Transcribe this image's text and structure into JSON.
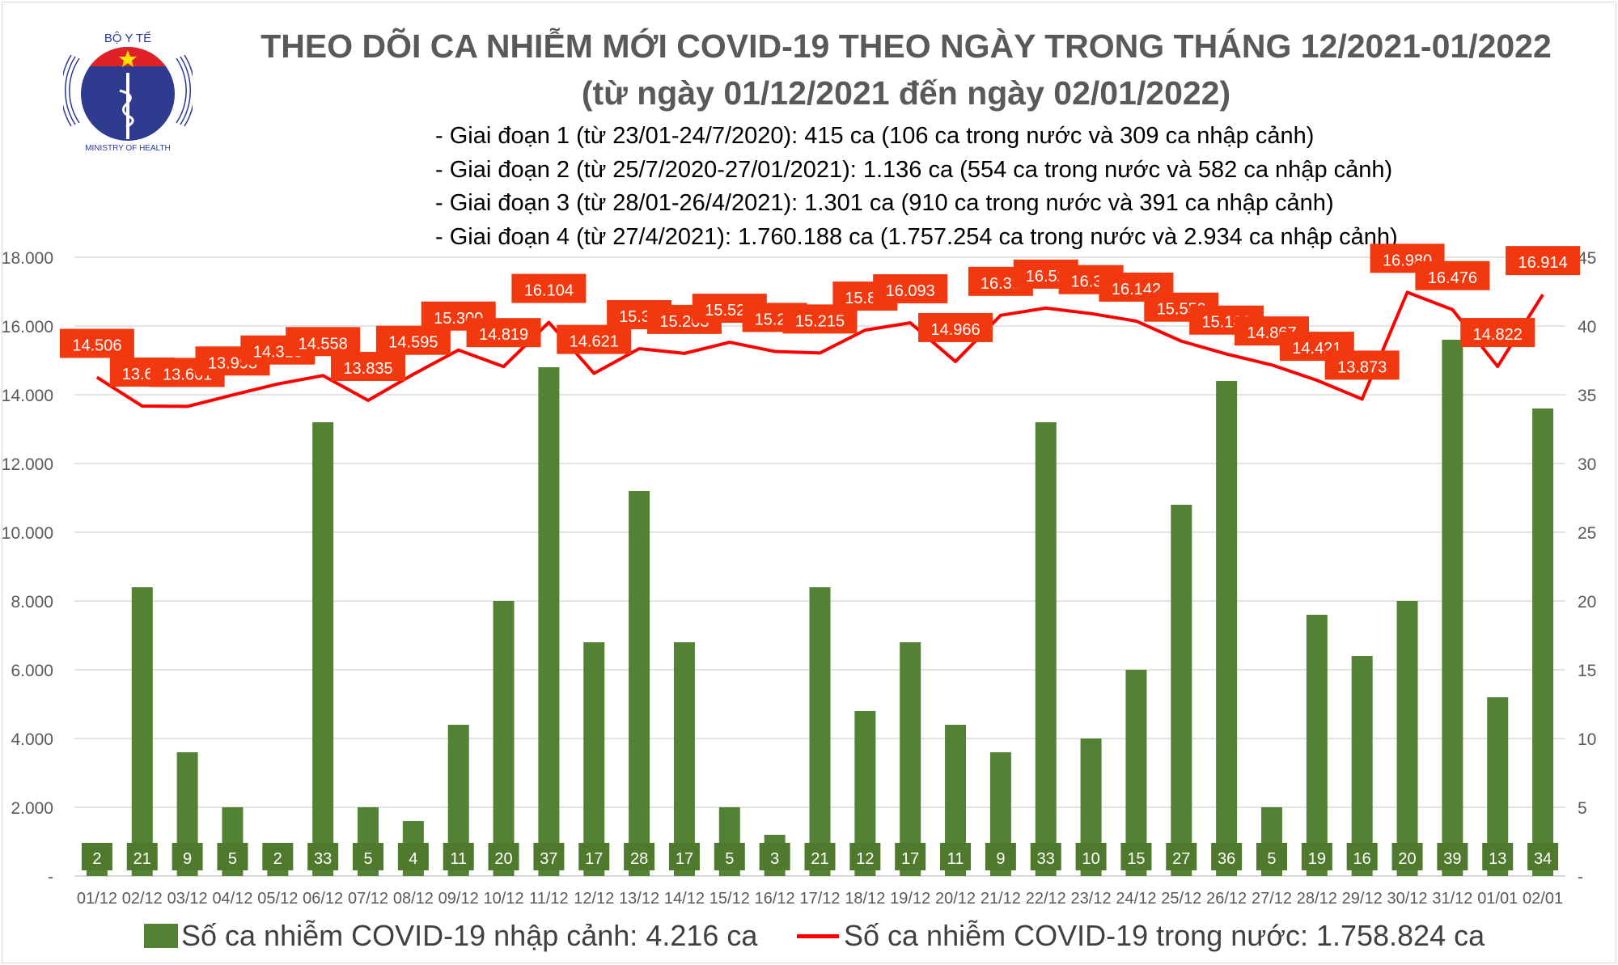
{
  "header": {
    "logo_text_top": "BỘ Y TẾ",
    "logo_text_bottom": "MINISTRY OF HEALTH",
    "title": "THEO DÕI CA NHIỄM MỚI COVID-19 THEO NGÀY TRONG THÁNG 12/2021-01/2022",
    "subtitle": "(từ ngày 01/12/2021 đến ngày 02/01/2022)",
    "notes": [
      "- Giai đoạn 1 (từ 23/01-24/7/2020): 415 ca (106 ca trong nước và 309 ca nhập cảnh)",
      "- Giai đoạn 2 (từ 25/7/2020-27/01/2021): 1.136 ca (554 ca trong nước và 582 ca nhập cảnh)",
      "- Giai đoạn 3 (từ 28/01-26/4/2021): 1.301 ca (910 ca trong nước và 391 ca nhập cảnh)",
      "- Giai đoạn 4 (từ 27/4/2021): 1.760.188 ca (1.757.254 ca trong nước và 2.934 ca nhập cảnh)"
    ]
  },
  "chart_data": {
    "type": "bar+line",
    "categories": [
      "01/12",
      "02/12",
      "03/12",
      "04/12",
      "05/12",
      "06/12",
      "07/12",
      "08/12",
      "09/12",
      "10/12",
      "11/12",
      "12/12",
      "13/12",
      "14/12",
      "15/12",
      "16/12",
      "17/12",
      "18/12",
      "19/12",
      "20/12",
      "21/12",
      "22/12",
      "23/12",
      "24/12",
      "25/12",
      "26/12",
      "27/12",
      "28/12",
      "29/12",
      "30/12",
      "31/12",
      "01/01",
      "02/01"
    ],
    "left_axis": {
      "ylim": [
        0,
        18000
      ],
      "ticks": [
        "-",
        "2.000",
        "4.000",
        "6.000",
        "8.000",
        "10.000",
        "12.000",
        "14.000",
        "16.000",
        "18.000"
      ]
    },
    "right_axis": {
      "ylim": [
        0,
        45
      ],
      "ticks": [
        "-",
        "5",
        "10",
        "15",
        "20",
        "25",
        "30",
        "35",
        "40",
        "45"
      ]
    },
    "grid": true,
    "legend_position": "bottom",
    "series": [
      {
        "name": "Số ca nhiễm COVID-19 nhập cảnh: 4.216 ca",
        "type": "bar",
        "axis": "right",
        "color": "#548235",
        "values": [
          2,
          21,
          9,
          5,
          2,
          33,
          5,
          4,
          11,
          20,
          37,
          17,
          28,
          17,
          5,
          3,
          21,
          12,
          17,
          11,
          9,
          33,
          10,
          15,
          27,
          36,
          5,
          19,
          16,
          20,
          39,
          13,
          34
        ]
      },
      {
        "name": "Số ca nhiễm COVID-19 trong nước: 1.758.824 ca",
        "type": "line",
        "axis": "left",
        "color": "#ff0000",
        "values": [
          14506,
          13670,
          13661,
          13993,
          14313,
          14558,
          13835,
          14595,
          15300,
          14819,
          16104,
          14621,
          15340,
          15203,
          15527,
          15260,
          15215,
          15880,
          16093,
          14966,
          16310,
          16520,
          16360,
          16142,
          15559,
          15183,
          14867,
          14421,
          13873,
          16980,
          16476,
          14822,
          16914
        ],
        "labels": [
          "14.506",
          "13.67",
          "13.661",
          "13.993",
          "14.313",
          "14.558",
          "13.835",
          "14.595",
          "15.300",
          "14.819",
          "16.104",
          "14.621",
          "15.34",
          "15.203",
          "15.527",
          "15.26",
          "15.215",
          "15.88",
          "16.093",
          "14.966",
          "16.31",
          "16.52",
          "16.36",
          "16.142",
          "15.559",
          "15.183",
          "14.867",
          "14.421",
          "13.873",
          "16.980",
          "16.476",
          "14.822",
          "16.914"
        ]
      }
    ]
  }
}
